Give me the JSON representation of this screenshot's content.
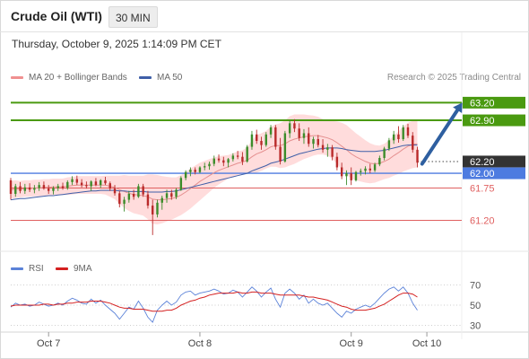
{
  "header": {
    "instrument": "Crude Oil (WTI)",
    "timeframe": "30 MIN"
  },
  "datetime": "Thursday, October 9, 2025 1:14:09 PM CET",
  "legend": {
    "ma20_bb": "MA 20 + Bollinger Bands",
    "ma50": "MA 50"
  },
  "copyright": "Research © 2025 Trading Central",
  "colors": {
    "resistance": "#4a9a10",
    "support": "#e06060",
    "current": "#4d7be0",
    "up_candle": "#3b8c2a",
    "down_candle": "#b92a2a",
    "bollinger": "#ffd0d0",
    "ma20": "#e59090",
    "ma50": "#3f5fa8",
    "arrow": "#2e5fa0",
    "rsi": "#5b82d8",
    "rsi_ma": "#d42020",
    "last_price_box": "#333333"
  },
  "chart_data": [
    {
      "type": "candlestick",
      "ylim": [
        60.75,
        63.45
      ],
      "x_range": [
        0,
        95
      ],
      "x_ticks": [
        {
          "label": "Oct 7",
          "x": 8
        },
        {
          "label": "Oct 8",
          "x": 40
        },
        {
          "label": "Oct 9",
          "x": 72
        },
        {
          "label": "Oct 10",
          "x": 88
        }
      ],
      "levels": [
        {
          "value": 63.2,
          "label": "63.20",
          "kind": "resistance"
        },
        {
          "value": 62.9,
          "label": "62.90",
          "kind": "resistance"
        },
        {
          "value": 62.2,
          "label": "62.20",
          "kind": "last"
        },
        {
          "value": 62.0,
          "label": "62.00",
          "kind": "current"
        },
        {
          "value": 61.75,
          "label": "61.75",
          "kind": "support"
        },
        {
          "value": 61.2,
          "label": "61.20",
          "kind": "support"
        }
      ],
      "candles": [
        [
          61.88,
          61.92,
          61.55,
          61.65
        ],
        [
          61.65,
          61.82,
          61.6,
          61.78
        ],
        [
          61.78,
          61.85,
          61.66,
          61.7
        ],
        [
          61.7,
          61.82,
          61.65,
          61.76
        ],
        [
          61.76,
          61.83,
          61.68,
          61.72
        ],
        [
          61.72,
          61.8,
          61.66,
          61.75
        ],
        [
          61.75,
          61.85,
          61.7,
          61.8
        ],
        [
          61.8,
          61.86,
          61.72,
          61.74
        ],
        [
          61.74,
          61.8,
          61.65,
          61.7
        ],
        [
          61.7,
          61.78,
          61.64,
          61.75
        ],
        [
          61.75,
          61.82,
          61.7,
          61.78
        ],
        [
          61.78,
          61.84,
          61.72,
          61.75
        ],
        [
          61.75,
          61.88,
          61.72,
          61.85
        ],
        [
          61.85,
          61.95,
          61.8,
          61.9
        ],
        [
          61.9,
          61.96,
          61.8,
          61.84
        ],
        [
          61.84,
          61.9,
          61.76,
          61.8
        ],
        [
          61.8,
          61.86,
          61.74,
          61.78
        ],
        [
          61.78,
          61.88,
          61.7,
          61.86
        ],
        [
          61.86,
          61.92,
          61.78,
          61.8
        ],
        [
          61.8,
          61.9,
          61.75,
          61.88
        ],
        [
          61.88,
          61.94,
          61.8,
          61.83
        ],
        [
          61.83,
          61.86,
          61.7,
          61.74
        ],
        [
          61.74,
          61.8,
          61.62,
          61.66
        ],
        [
          61.66,
          61.7,
          61.42,
          61.48
        ],
        [
          61.48,
          61.6,
          61.35,
          61.55
        ],
        [
          61.55,
          61.7,
          61.5,
          61.65
        ],
        [
          61.65,
          61.72,
          61.55,
          61.6
        ],
        [
          61.6,
          61.82,
          61.58,
          61.78
        ],
        [
          61.78,
          61.82,
          61.6,
          61.64
        ],
        [
          61.64,
          61.7,
          61.4,
          61.45
        ],
        [
          61.45,
          61.55,
          60.95,
          61.3
        ],
        [
          61.3,
          61.55,
          61.25,
          61.5
        ],
        [
          61.5,
          61.62,
          61.38,
          61.58
        ],
        [
          61.58,
          61.72,
          61.5,
          61.66
        ],
        [
          61.66,
          61.72,
          61.55,
          61.6
        ],
        [
          61.6,
          61.75,
          61.56,
          61.72
        ],
        [
          61.72,
          61.95,
          61.7,
          61.92
        ],
        [
          61.92,
          62.05,
          61.88,
          62.02
        ],
        [
          62.02,
          62.1,
          61.95,
          62.06
        ],
        [
          62.06,
          62.1,
          61.98,
          62.02
        ],
        [
          62.02,
          62.12,
          62.0,
          62.1
        ],
        [
          62.1,
          62.18,
          62.05,
          62.12
        ],
        [
          62.12,
          62.2,
          62.06,
          62.16
        ],
        [
          62.16,
          62.3,
          62.12,
          62.25
        ],
        [
          62.25,
          62.32,
          62.18,
          62.22
        ],
        [
          62.22,
          62.28,
          62.12,
          62.18
        ],
        [
          62.18,
          62.26,
          62.1,
          62.24
        ],
        [
          62.24,
          62.34,
          62.2,
          62.3
        ],
        [
          62.3,
          62.38,
          62.24,
          62.28
        ],
        [
          62.28,
          62.36,
          62.14,
          62.2
        ],
        [
          62.2,
          62.48,
          62.18,
          62.45
        ],
        [
          62.45,
          62.72,
          62.4,
          62.66
        ],
        [
          62.66,
          62.74,
          62.5,
          62.55
        ],
        [
          62.55,
          62.62,
          62.4,
          62.48
        ],
        [
          62.48,
          62.7,
          62.45,
          62.66
        ],
        [
          62.66,
          62.82,
          62.6,
          62.78
        ],
        [
          62.78,
          62.82,
          62.4,
          62.45
        ],
        [
          62.45,
          62.6,
          62.15,
          62.2
        ],
        [
          62.2,
          62.72,
          62.18,
          62.68
        ],
        [
          62.68,
          62.9,
          62.6,
          62.85
        ],
        [
          62.85,
          62.92,
          62.7,
          62.76
        ],
        [
          62.76,
          62.85,
          62.55,
          62.6
        ],
        [
          62.6,
          62.75,
          62.5,
          62.68
        ],
        [
          62.68,
          62.78,
          62.45,
          62.5
        ],
        [
          62.5,
          62.62,
          62.42,
          62.58
        ],
        [
          62.58,
          62.65,
          62.44,
          62.48
        ],
        [
          62.48,
          62.58,
          62.35,
          62.4
        ],
        [
          62.4,
          62.5,
          62.28,
          62.44
        ],
        [
          62.44,
          62.48,
          62.22,
          62.28
        ],
        [
          62.28,
          62.35,
          62.05,
          62.1
        ],
        [
          62.1,
          62.18,
          61.9,
          61.95
        ],
        [
          61.95,
          62.05,
          61.8,
          62.0
        ],
        [
          62.0,
          62.1,
          61.8,
          61.88
        ],
        [
          61.88,
          62.04,
          61.86,
          62.02
        ],
        [
          62.02,
          62.08,
          61.96,
          62.04
        ],
        [
          62.04,
          62.12,
          61.98,
          62.08
        ],
        [
          62.08,
          62.16,
          62.0,
          62.05
        ],
        [
          62.05,
          62.18,
          62.02,
          62.15
        ],
        [
          62.15,
          62.3,
          62.12,
          62.26
        ],
        [
          62.26,
          62.45,
          62.22,
          62.42
        ],
        [
          62.42,
          62.6,
          62.38,
          62.56
        ],
        [
          62.56,
          62.72,
          62.5,
          62.66
        ],
        [
          62.66,
          62.8,
          62.52,
          62.58
        ],
        [
          62.58,
          62.82,
          62.55,
          62.78
        ],
        [
          62.78,
          62.84,
          62.6,
          62.64
        ],
        [
          62.64,
          62.7,
          62.35,
          62.4
        ],
        [
          62.4,
          62.45,
          62.1,
          62.18
        ]
      ],
      "ma20": [
        61.72,
        61.73,
        61.73,
        61.74,
        61.74,
        61.75,
        61.75,
        61.76,
        61.76,
        61.77,
        61.77,
        61.77,
        61.78,
        61.79,
        61.8,
        61.8,
        61.8,
        61.8,
        61.8,
        61.8,
        61.8,
        61.78,
        61.76,
        61.72,
        61.69,
        61.66,
        61.64,
        61.63,
        61.62,
        61.6,
        61.56,
        61.55,
        61.55,
        61.56,
        61.57,
        61.59,
        61.63,
        61.68,
        61.74,
        61.8,
        61.86,
        61.91,
        61.96,
        62.01,
        62.05,
        62.08,
        62.11,
        62.14,
        62.17,
        62.19,
        62.22,
        62.28,
        62.33,
        62.36,
        62.4,
        62.45,
        62.47,
        62.47,
        62.5,
        62.55,
        62.58,
        62.6,
        62.62,
        62.63,
        62.64,
        62.64,
        62.62,
        62.6,
        62.57,
        62.52,
        62.46,
        62.4,
        62.33,
        62.28,
        62.24,
        62.2,
        62.17,
        62.16,
        62.17,
        62.2,
        62.24,
        62.3,
        62.35,
        62.41,
        62.46,
        62.49,
        62.5
      ],
      "ma50": [
        61.55,
        61.56,
        61.57,
        61.57,
        61.58,
        61.59,
        61.6,
        61.61,
        61.62,
        61.62,
        61.63,
        61.64,
        61.65,
        61.66,
        61.67,
        61.68,
        61.69,
        61.7,
        61.7,
        61.71,
        61.71,
        61.71,
        61.71,
        61.7,
        61.7,
        61.69,
        61.69,
        61.69,
        61.69,
        61.68,
        61.68,
        61.68,
        61.68,
        61.69,
        61.69,
        61.7,
        61.72,
        61.74,
        61.76,
        61.78,
        61.8,
        61.82,
        61.84,
        61.86,
        61.88,
        61.9,
        61.92,
        61.94,
        61.96,
        61.98,
        62.0,
        62.04,
        62.07,
        62.1,
        62.13,
        62.17,
        62.19,
        62.21,
        62.24,
        62.27,
        62.3,
        62.33,
        62.35,
        62.37,
        62.39,
        62.41,
        62.42,
        62.43,
        62.43,
        62.43,
        62.42,
        62.4,
        62.39,
        62.38,
        62.37,
        62.37,
        62.37,
        62.37,
        62.38,
        62.39,
        62.41,
        62.43,
        62.45,
        62.47,
        62.48,
        62.48,
        62.48
      ],
      "bb_width": [
        0.15,
        0.15,
        0.14,
        0.14,
        0.14,
        0.14,
        0.14,
        0.14,
        0.14,
        0.14,
        0.14,
        0.14,
        0.15,
        0.15,
        0.15,
        0.15,
        0.15,
        0.15,
        0.15,
        0.15,
        0.16,
        0.18,
        0.2,
        0.24,
        0.28,
        0.3,
        0.32,
        0.33,
        0.34,
        0.38,
        0.42,
        0.42,
        0.4,
        0.38,
        0.36,
        0.34,
        0.34,
        0.34,
        0.34,
        0.33,
        0.32,
        0.3,
        0.28,
        0.26,
        0.24,
        0.22,
        0.2,
        0.2,
        0.2,
        0.2,
        0.22,
        0.28,
        0.32,
        0.32,
        0.32,
        0.34,
        0.36,
        0.38,
        0.4,
        0.42,
        0.42,
        0.4,
        0.38,
        0.36,
        0.34,
        0.32,
        0.3,
        0.3,
        0.32,
        0.36,
        0.4,
        0.42,
        0.42,
        0.4,
        0.38,
        0.36,
        0.34,
        0.32,
        0.3,
        0.3,
        0.32,
        0.34,
        0.36,
        0.38,
        0.4,
        0.4,
        0.4
      ],
      "arrow": {
        "from": [
          87,
          62.16
        ],
        "to": [
          95.5,
          63.2
        ]
      }
    },
    {
      "type": "line",
      "legend": [
        "RSI",
        "9MA"
      ],
      "ylim": [
        25,
        75
      ],
      "y_ticks": [
        70,
        50,
        30
      ],
      "series": [
        {
          "name": "RSI",
          "values": [
            48,
            52,
            50,
            51,
            49,
            50,
            53,
            51,
            49,
            50,
            52,
            50,
            54,
            57,
            55,
            52,
            51,
            56,
            52,
            55,
            50,
            46,
            42,
            36,
            42,
            48,
            46,
            54,
            47,
            38,
            33,
            45,
            50,
            54,
            50,
            53,
            60,
            63,
            64,
            60,
            62,
            63,
            64,
            66,
            64,
            61,
            62,
            65,
            63,
            58,
            63,
            68,
            64,
            58,
            63,
            67,
            56,
            48,
            62,
            66,
            62,
            56,
            60,
            52,
            56,
            52,
            50,
            52,
            47,
            42,
            38,
            44,
            42,
            46,
            48,
            50,
            48,
            52,
            57,
            62,
            66,
            68,
            64,
            68,
            62,
            52,
            45
          ]
        },
        {
          "name": "9MA",
          "values": [
            49,
            50,
            50,
            50,
            50,
            50,
            50,
            51,
            51,
            50,
            51,
            51,
            52,
            52,
            53,
            53,
            53,
            54,
            54,
            54,
            53,
            52,
            50,
            48,
            47,
            47,
            46,
            46,
            46,
            45,
            44,
            44,
            44,
            45,
            45,
            47,
            50,
            52,
            54,
            55,
            57,
            58,
            60,
            61,
            62,
            62,
            62,
            62,
            63,
            62,
            62,
            63,
            63,
            62,
            62,
            62,
            61,
            60,
            60,
            60,
            60,
            60,
            59,
            58,
            58,
            57,
            56,
            55,
            53,
            51,
            49,
            48,
            46,
            45,
            45,
            45,
            46,
            47,
            49,
            51,
            54,
            57,
            60,
            62,
            62,
            61,
            58
          ]
        }
      ]
    }
  ]
}
